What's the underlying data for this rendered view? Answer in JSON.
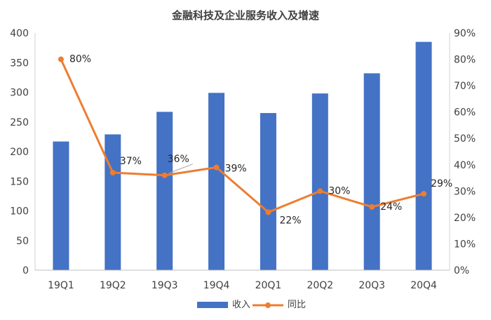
{
  "chart_data": {
    "type": "bar+line",
    "title": "金融科技及企业服务收入及增速",
    "categories": [
      "19Q1",
      "19Q2",
      "19Q3",
      "19Q4",
      "20Q1",
      "20Q2",
      "20Q3",
      "20Q4"
    ],
    "series": [
      {
        "name": "收入",
        "type": "bar",
        "axis": "left",
        "color": "#4472C4",
        "values": [
          217,
          229,
          267,
          299,
          265,
          298,
          332,
          385
        ]
      },
      {
        "name": "同比",
        "type": "line",
        "axis": "right",
        "color": "#ED7D31",
        "values": [
          80,
          37,
          36,
          39,
          22,
          30,
          24,
          29
        ],
        "labels": [
          "80%",
          "37%",
          "36%",
          "39%",
          "22%",
          "30%",
          "24%",
          "29%"
        ]
      }
    ],
    "y_left": {
      "min": 0,
      "max": 400,
      "step": 50,
      "ticks": [
        "0",
        "50",
        "100",
        "150",
        "200",
        "250",
        "300",
        "350",
        "400"
      ]
    },
    "y_right": {
      "min": 0,
      "max": 90,
      "step": 10,
      "ticks": [
        "0%",
        "10%",
        "20%",
        "30%",
        "40%",
        "50%",
        "60%",
        "70%",
        "80%",
        "90%"
      ]
    },
    "legend": {
      "position": "bottom",
      "items": [
        "收入",
        "同比"
      ]
    },
    "grid": false
  }
}
